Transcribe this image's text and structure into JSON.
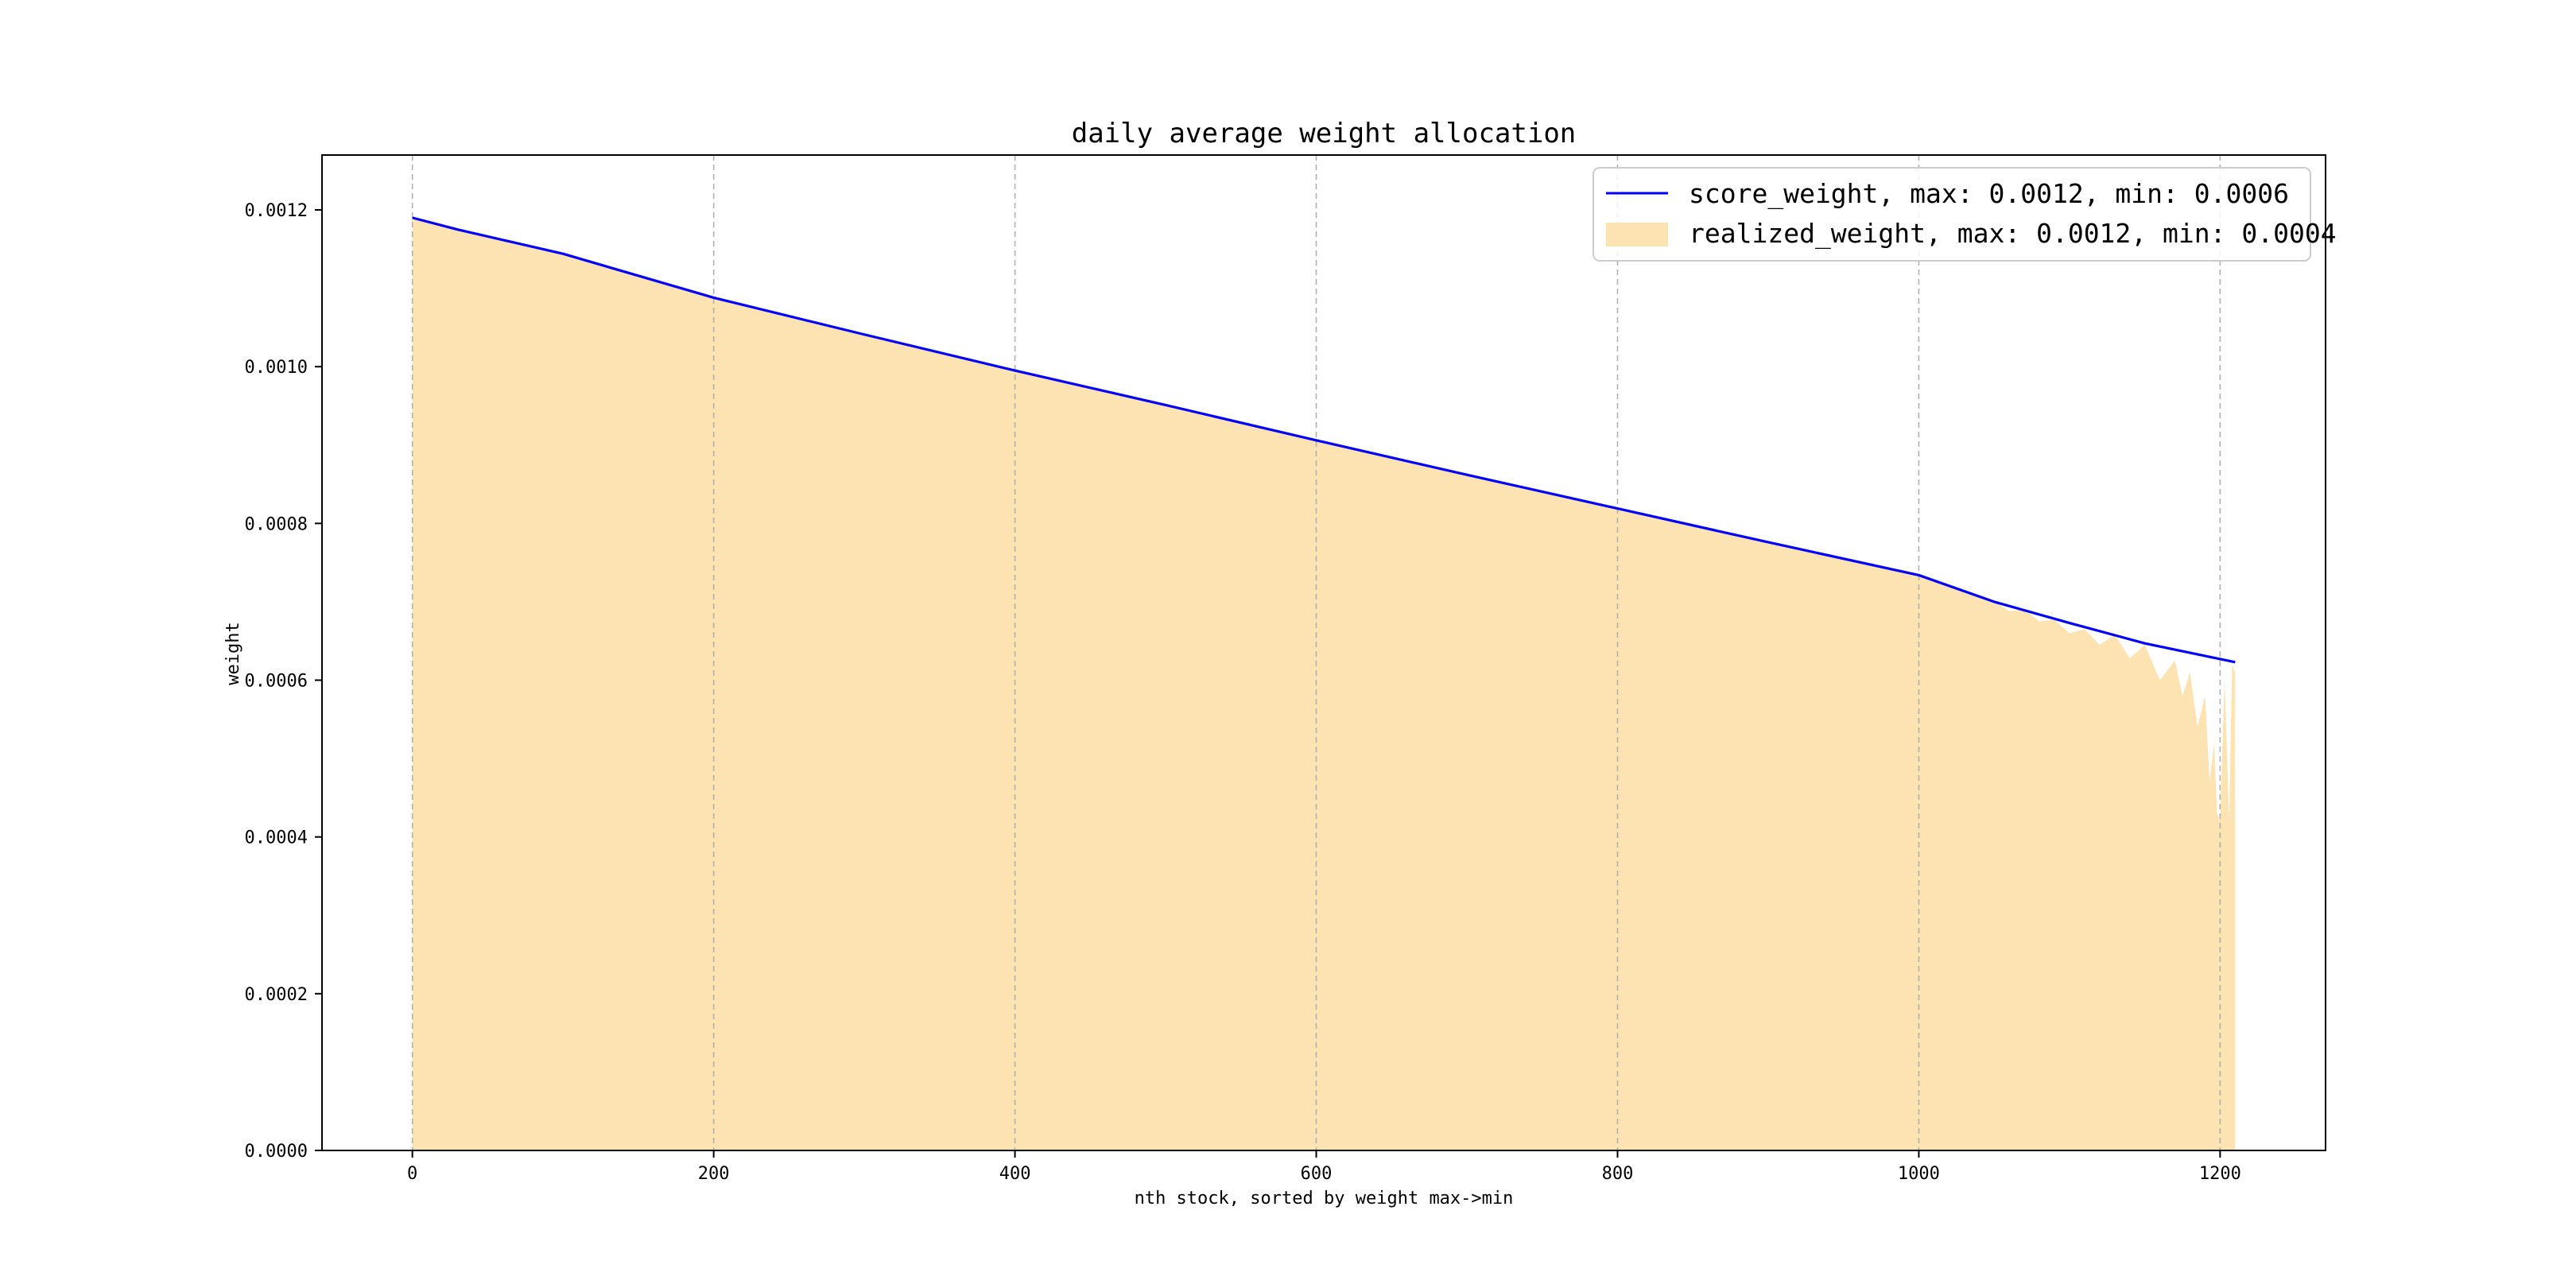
{
  "chart_data": {
    "type": "area",
    "title": "daily average weight allocation",
    "xlabel": "nth stock, sorted by weight max->min",
    "ylabel": "weight",
    "xlim": [
      -60,
      1270
    ],
    "ylim": [
      0.0,
      0.00127
    ],
    "x_ticks": [
      0,
      200,
      400,
      600,
      800,
      1000,
      1200
    ],
    "x_tick_labels": [
      "0",
      "200",
      "400",
      "600",
      "800",
      "1000",
      "1200"
    ],
    "y_ticks": [
      0.0,
      0.0002,
      0.0004,
      0.0006,
      0.0008,
      0.001,
      0.0012
    ],
    "y_tick_labels": [
      "0.0000",
      "0.0002",
      "0.0004",
      "0.0006",
      "0.0008",
      "0.0010",
      "0.0012"
    ],
    "grid": "vertical dashed",
    "legend_position": "top-right",
    "series": [
      {
        "name": "score_weight, max: 0.0012, min: 0.0006",
        "kind": "line",
        "color": "#0000ff",
        "x": [
          0,
          30,
          100,
          200,
          300,
          400,
          500,
          600,
          700,
          800,
          900,
          1000,
          1050,
          1100,
          1150,
          1200,
          1210
        ],
        "y": [
          0.00119,
          0.001175,
          0.001144,
          0.001088,
          0.001041,
          0.000995,
          0.000951,
          0.000906,
          0.000862,
          0.000819,
          0.000776,
          0.000734,
          0.0007,
          0.000673,
          0.000647,
          0.000627,
          0.000623
        ]
      },
      {
        "name": "realized_weight, max: 0.0012, min: 0.0004",
        "kind": "area",
        "color": "#fde2b2",
        "x": [
          0,
          30,
          100,
          200,
          300,
          400,
          500,
          600,
          700,
          800,
          900,
          1000,
          1030,
          1050,
          1060,
          1070,
          1080,
          1090,
          1100,
          1110,
          1120,
          1130,
          1140,
          1150,
          1160,
          1170,
          1175,
          1180,
          1185,
          1190,
          1193,
          1196,
          1198,
          1200,
          1203,
          1206,
          1208,
          1210
        ],
        "y": [
          0.00119,
          0.001175,
          0.001144,
          0.001088,
          0.001041,
          0.000995,
          0.000951,
          0.000906,
          0.000862,
          0.000819,
          0.000776,
          0.000734,
          0.000712,
          0.0007,
          0.000688,
          0.00069,
          0.000675,
          0.000677,
          0.00066,
          0.000665,
          0.000645,
          0.000658,
          0.000628,
          0.000645,
          0.0006,
          0.000625,
          0.00058,
          0.00061,
          0.00054,
          0.00058,
          0.00047,
          0.00052,
          0.00043,
          0.00042,
          0.0006,
          0.00042,
          0.00062,
          0.00061
        ]
      }
    ]
  }
}
